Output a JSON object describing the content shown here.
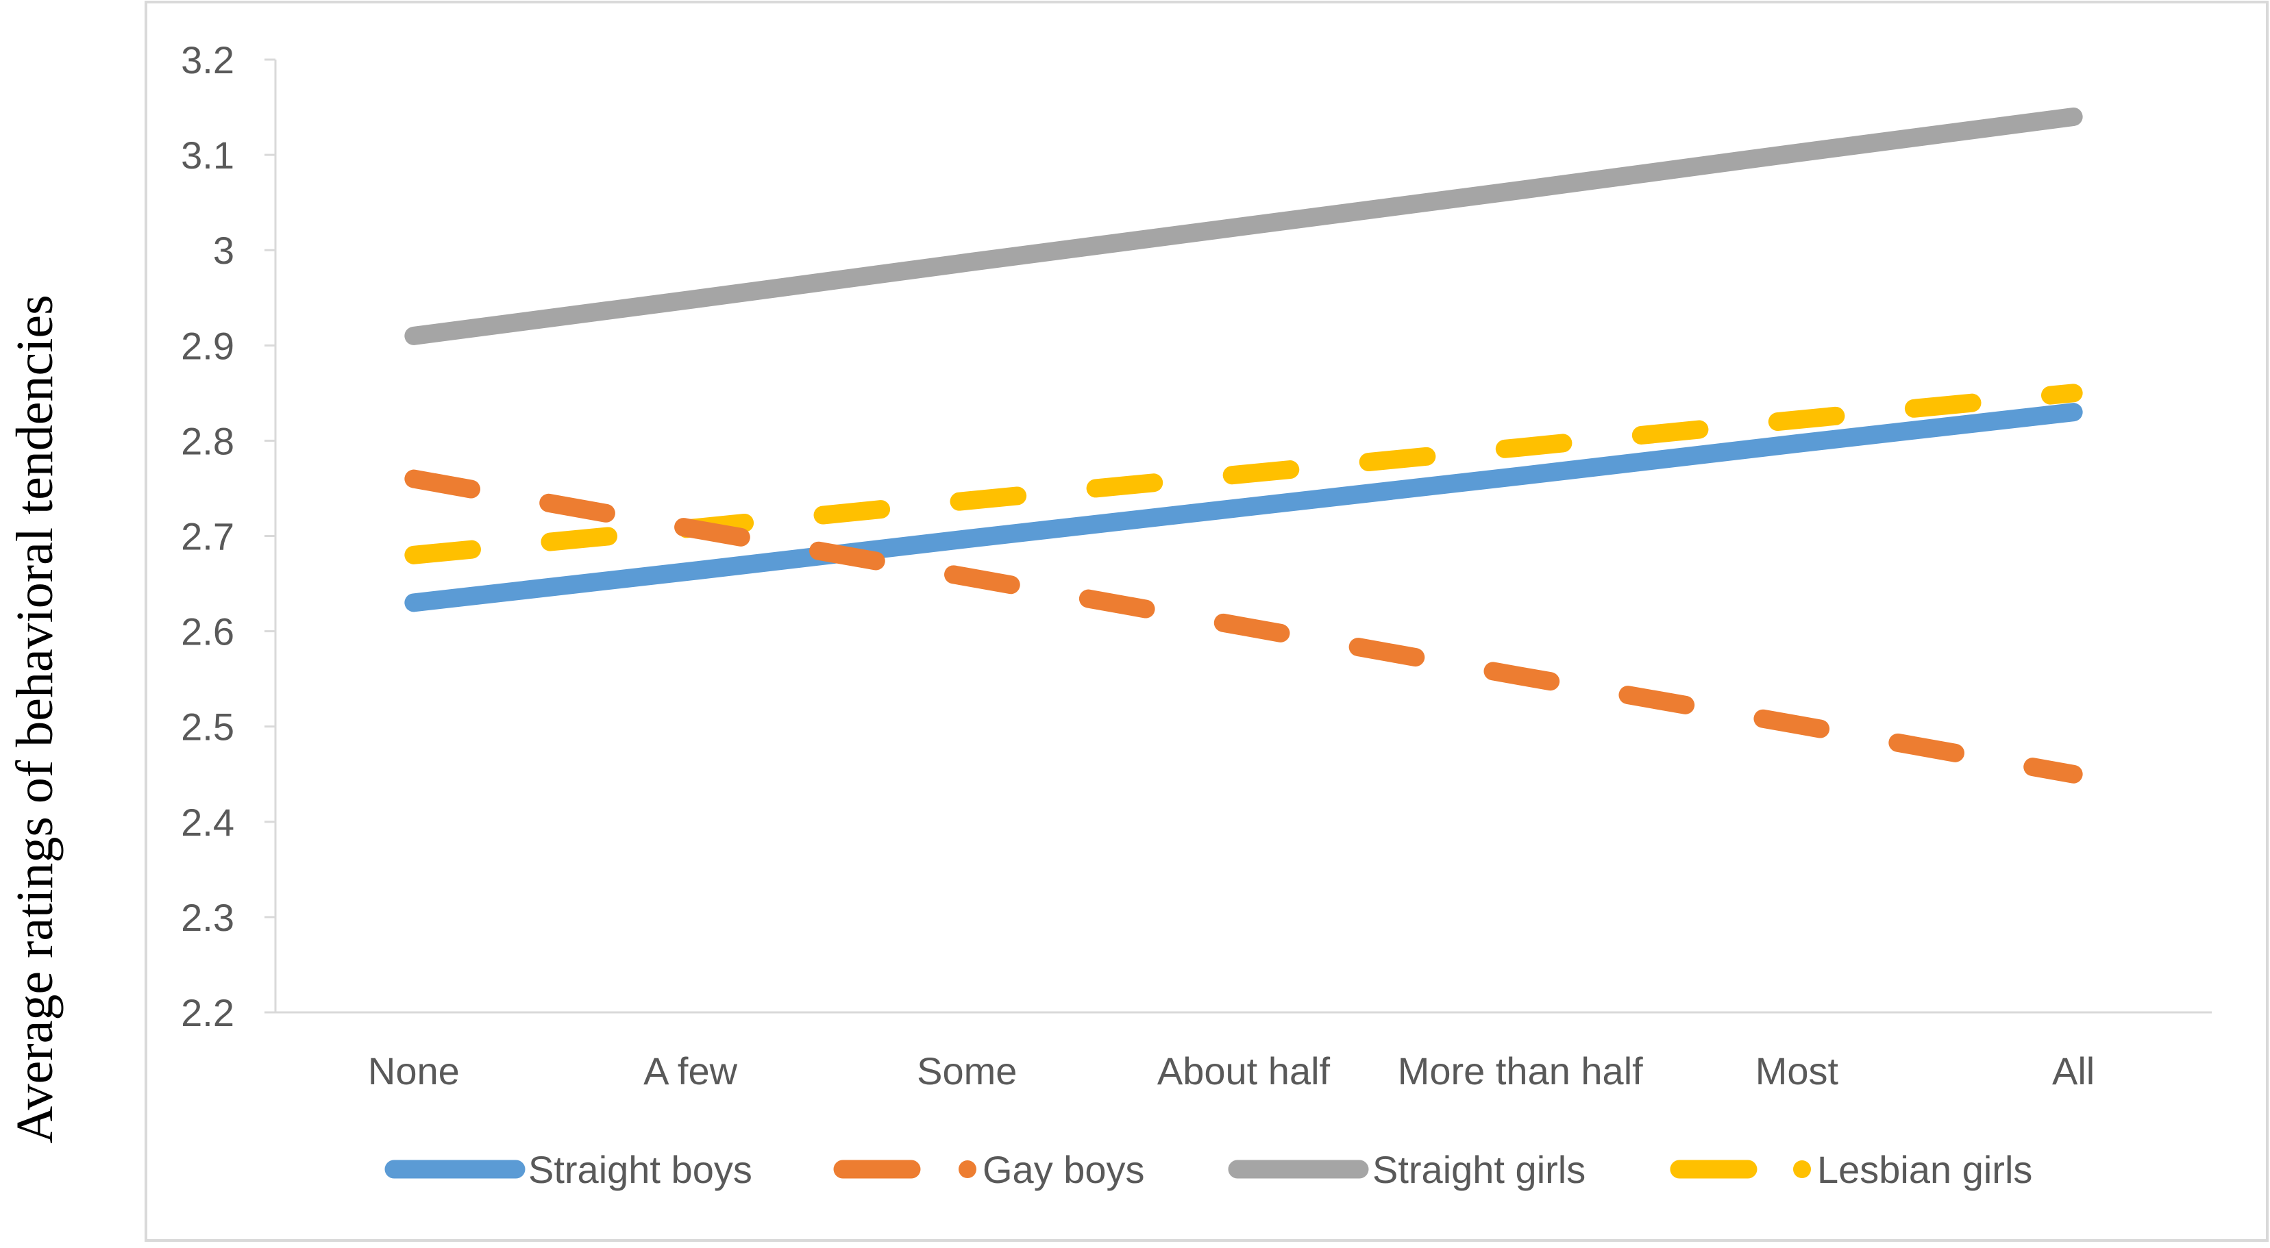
{
  "chart_data": {
    "type": "line",
    "title": "",
    "xlabel": "",
    "ylabel": "Average ratings of behavioral tendencies",
    "categories": [
      "None",
      "A few",
      "Some",
      "About half",
      "More than half",
      "Most",
      "All"
    ],
    "ylim": [
      2.2,
      3.2
    ],
    "yticks": [
      "2.2",
      "2.3",
      "2.4",
      "2.5",
      "2.6",
      "2.7",
      "2.8",
      "2.9",
      "3",
      "3.1",
      "3.2"
    ],
    "grid": false,
    "legend_position": "bottom",
    "series": [
      {
        "name": "Straight boys",
        "color": "#5b9bd5",
        "style": "solid",
        "values": [
          2.63,
          2.663,
          2.697,
          2.73,
          2.763,
          2.797,
          2.83
        ]
      },
      {
        "name": "Gay boys",
        "color": "#ed7d31",
        "style": "dashed",
        "values": [
          2.76,
          2.708,
          2.657,
          2.605,
          2.553,
          2.502,
          2.45
        ]
      },
      {
        "name": "Straight girls",
        "color": "#a5a5a5",
        "style": "solid",
        "values": [
          2.91,
          2.948,
          2.987,
          3.025,
          3.063,
          3.102,
          3.14
        ]
      },
      {
        "name": "Lesbian girls",
        "color": "#ffc000",
        "style": "dashed",
        "values": [
          2.68,
          2.708,
          2.737,
          2.765,
          2.793,
          2.822,
          2.85
        ]
      }
    ]
  }
}
